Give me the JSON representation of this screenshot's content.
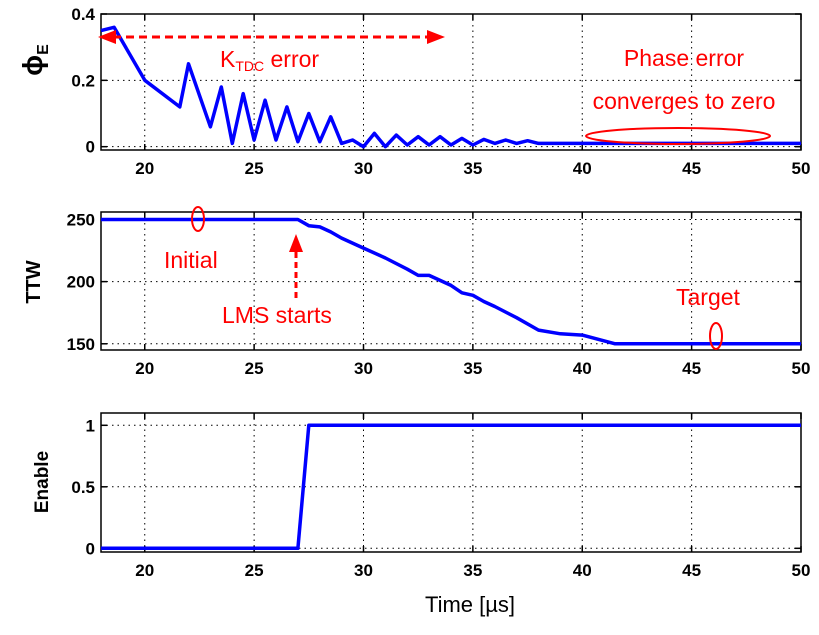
{
  "chart_data": [
    {
      "type": "line",
      "ylabel": "ϕ",
      "ylabel_sub": "E",
      "xlim": [
        18,
        50
      ],
      "ylim": [
        -0.01,
        0.4
      ],
      "xticks": [
        "20",
        "25",
        "30",
        "35",
        "40",
        "45",
        "50"
      ],
      "yticks": [
        "0",
        "0.2",
        "0.4"
      ],
      "grid": true,
      "colors": {
        "line": "#0000ff",
        "annotation": "#ff0000"
      },
      "series": [
        {
          "x": [
            18.0,
            18.6,
            20.0,
            21.6,
            22.0,
            23.0,
            23.5,
            24.0,
            24.5,
            25.0,
            25.5,
            26.0,
            26.5,
            27.0,
            27.5,
            28.0,
            28.5,
            29.0,
            29.5,
            30.0,
            30.5,
            31.0,
            31.5,
            32.0,
            32.5,
            33.0,
            33.5,
            34.0,
            34.5,
            35.0,
            35.5,
            36.0,
            36.5,
            37.0,
            37.5,
            38.0,
            40.0,
            42.0,
            45.0,
            50.0
          ],
          "y": [
            0.35,
            0.36,
            0.2,
            0.12,
            0.25,
            0.06,
            0.18,
            0.01,
            0.16,
            0.02,
            0.14,
            0.02,
            0.12,
            0.015,
            0.1,
            0.015,
            0.09,
            0.01,
            0.02,
            0.0,
            0.04,
            0.0,
            0.035,
            0.005,
            0.03,
            0.005,
            0.03,
            0.005,
            0.025,
            0.005,
            0.022,
            0.01,
            0.02,
            0.01,
            0.018,
            0.01,
            0.01,
            0.01,
            0.01,
            0.01
          ]
        }
      ],
      "annotations": {
        "ktdc_main": "K",
        "ktdc_sub": "TDC",
        "ktdc_tail": " error",
        "phase_line1": "Phase error",
        "phase_line2": "converges to zero"
      }
    },
    {
      "type": "line",
      "ylabel": "TTW",
      "xlim": [
        18,
        50
      ],
      "ylim": [
        145,
        256
      ],
      "xticks": [
        "20",
        "25",
        "30",
        "35",
        "40",
        "45",
        "50"
      ],
      "yticks": [
        "150",
        "200",
        "250"
      ],
      "grid": true,
      "series": [
        {
          "x": [
            18.0,
            27.0,
            27.5,
            28.0,
            28.5,
            29.0,
            30.0,
            31.0,
            32.0,
            32.5,
            33.0,
            33.5,
            34.0,
            34.5,
            35.0,
            35.5,
            36.0,
            37.0,
            38.0,
            39.0,
            40.0,
            41.5,
            45.0,
            50.0
          ],
          "y": [
            250,
            250,
            245,
            244,
            240,
            235,
            227,
            219,
            210,
            205,
            205,
            201,
            197,
            191,
            189,
            184,
            180,
            171,
            161,
            158,
            157,
            150,
            150,
            150
          ]
        }
      ],
      "annotations": {
        "initial": "Initial",
        "lms": "LMS starts",
        "target": "Target"
      }
    },
    {
      "type": "line",
      "ylabel": "Enable",
      "xlim": [
        18,
        50
      ],
      "ylim": [
        -0.03,
        1.1
      ],
      "xticks": [
        "20",
        "25",
        "30",
        "35",
        "40",
        "45",
        "50"
      ],
      "yticks": [
        "0",
        "0.5",
        "1"
      ],
      "grid": true,
      "xlabel": "Time [µs]",
      "series": [
        {
          "x": [
            18.0,
            27.0,
            27.5,
            50.0
          ],
          "y": [
            0,
            0,
            1,
            1
          ]
        }
      ]
    }
  ]
}
